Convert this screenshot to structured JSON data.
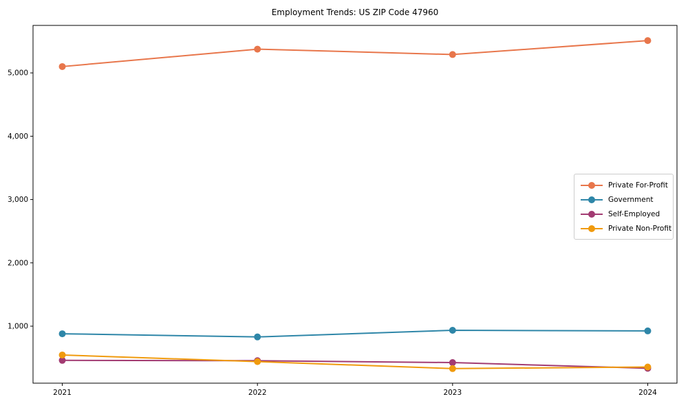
{
  "chart_data": {
    "type": "line",
    "title": "Employment Trends: US ZIP Code 47960",
    "xlabel": "",
    "ylabel": "",
    "grid": false,
    "legend_position": "center right",
    "x": [
      2021,
      2022,
      2023,
      2024
    ],
    "x_tick_labels": [
      "2021",
      "2022",
      "2023",
      "2024"
    ],
    "y_ticks": [
      1000,
      2000,
      3000,
      4000,
      5000
    ],
    "y_tick_labels": [
      "1,000",
      "2,000",
      "3,000",
      "4,000",
      "5,000"
    ],
    "xlim": [
      2020.85,
      2024.15
    ],
    "ylim": [
      100,
      5750
    ],
    "axis_color": "#000000",
    "series": [
      {
        "name": "Private For-Profit",
        "color": "#E8764B",
        "values": [
          5100,
          5375,
          5290,
          5510
        ]
      },
      {
        "name": "Government",
        "color": "#2E86A8",
        "values": [
          880,
          830,
          935,
          925
        ]
      },
      {
        "name": "Self-Employed",
        "color": "#A23B72",
        "values": [
          460,
          455,
          425,
          335
        ]
      },
      {
        "name": "Private Non-Profit",
        "color": "#F09A0D",
        "values": [
          545,
          440,
          330,
          355
        ]
      }
    ]
  }
}
